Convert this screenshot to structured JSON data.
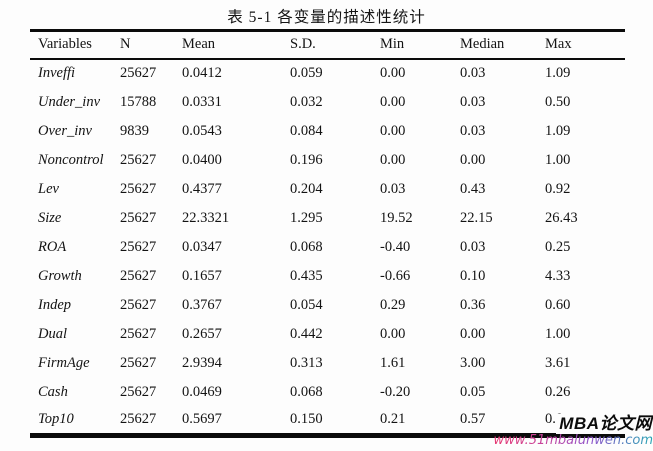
{
  "title": "表 5-1  各变量的描述性统计",
  "table": {
    "columns": [
      "Variables",
      "N",
      "Mean",
      "S.D.",
      "Min",
      "Median",
      "Max"
    ],
    "rows": [
      [
        "Inveffi",
        "25627",
        "0.0412",
        "0.059",
        "0.00",
        "0.03",
        "1.09"
      ],
      [
        "Under_inv",
        "15788",
        "0.0331",
        "0.032",
        "0.00",
        "0.03",
        "0.50"
      ],
      [
        "Over_inv",
        "9839",
        "0.0543",
        "0.084",
        "0.00",
        "0.03",
        "1.09"
      ],
      [
        "Noncontrol",
        "25627",
        "0.0400",
        "0.196",
        "0.00",
        "0.00",
        "1.00"
      ],
      [
        "Lev",
        "25627",
        "0.4377",
        "0.204",
        "0.03",
        "0.43",
        "0.92"
      ],
      [
        "Size",
        "25627",
        "22.3321",
        "1.295",
        "19.52",
        "22.15",
        "26.43"
      ],
      [
        "ROA",
        "25627",
        "0.0347",
        "0.068",
        "-0.40",
        "0.03",
        "0.25"
      ],
      [
        "Growth",
        "25627",
        "0.1657",
        "0.435",
        "-0.66",
        "0.10",
        "4.33"
      ],
      [
        "Indep",
        "25627",
        "0.3767",
        "0.054",
        "0.29",
        "0.36",
        "0.60"
      ],
      [
        "Dual",
        "25627",
        "0.2657",
        "0.442",
        "0.00",
        "0.00",
        "1.00"
      ],
      [
        "FirmAge",
        "25627",
        "2.9394",
        "0.313",
        "1.61",
        "3.00",
        "3.61"
      ],
      [
        "Cash",
        "25627",
        "0.0469",
        "0.068",
        "-0.20",
        "0.05",
        "0.26"
      ],
      [
        "Top10",
        "25627",
        "0.5697",
        "0.150",
        "0.21",
        "0.57",
        "0.9"
      ]
    ]
  },
  "watermark": {
    "site_name": "MBA论文网",
    "site_url": "www.51mbalunwen.com",
    "url_gradient_colors": [
      "#e8356e",
      "#c445a0",
      "#8f55cc",
      "#27a7b4"
    ],
    "name_color": "#0c0c0c"
  }
}
